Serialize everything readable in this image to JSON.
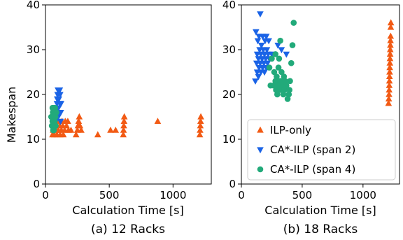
{
  "colors": {
    "ilp_only": "#f25a14",
    "span2": "#1a63e6",
    "span4": "#22aa7a"
  },
  "chart_data": [
    {
      "type": "scatter",
      "caption": "(a) 12 Racks",
      "xlabel": "Calculation Time [s]",
      "ylabel": "Makespan",
      "xlim": [
        0,
        1300
      ],
      "ylim": [
        0,
        40
      ],
      "xticks": [
        0,
        500,
        1000
      ],
      "yticks": [
        0,
        10,
        20,
        30,
        40
      ],
      "legend": null,
      "series": [
        {
          "name": "ILP-only",
          "marker": "triangle-up",
          "points": [
            [
              55,
              11
            ],
            [
              70,
              11
            ],
            [
              90,
              11
            ],
            [
              115,
              11
            ],
            [
              140,
              11
            ],
            [
              60,
              12
            ],
            [
              80,
              12
            ],
            [
              100,
              12
            ],
            [
              125,
              12
            ],
            [
              150,
              12
            ],
            [
              75,
              13
            ],
            [
              110,
              13
            ],
            [
              135,
              13
            ],
            [
              165,
              13
            ],
            [
              95,
              14
            ],
            [
              130,
              14
            ],
            [
              155,
              14
            ],
            [
              175,
              14
            ],
            [
              180,
              12
            ],
            [
              200,
              12
            ],
            [
              240,
              11
            ],
            [
              250,
              12
            ],
            [
              255,
              13
            ],
            [
              260,
              14
            ],
            [
              265,
              15
            ],
            [
              270,
              13
            ],
            [
              280,
              12
            ],
            [
              410,
              11
            ],
            [
              510,
              12
            ],
            [
              550,
              12
            ],
            [
              610,
              11
            ],
            [
              612,
              12
            ],
            [
              614,
              13
            ],
            [
              616,
              14
            ],
            [
              618,
              15
            ],
            [
              880,
              14
            ],
            [
              1210,
              11
            ],
            [
              1212,
              12
            ],
            [
              1214,
              13
            ],
            [
              1216,
              14
            ],
            [
              1218,
              15
            ]
          ]
        },
        {
          "name": "CA*-ILP (span 2)",
          "marker": "triangle-down",
          "points": [
            [
              80,
              14
            ],
            [
              82,
              15
            ],
            [
              85,
              16
            ],
            [
              88,
              17
            ],
            [
              90,
              18
            ],
            [
              92,
              19
            ],
            [
              95,
              20
            ],
            [
              98,
              21
            ],
            [
              100,
              15
            ],
            [
              102,
              17
            ],
            [
              105,
              19
            ],
            [
              108,
              21
            ],
            [
              110,
              16
            ],
            [
              112,
              18
            ],
            [
              115,
              20
            ],
            [
              118,
              14
            ],
            [
              120,
              16
            ],
            [
              122,
              18
            ],
            [
              112,
              21
            ],
            [
              95,
              16
            ]
          ]
        },
        {
          "name": "CA*-ILP (span 4)",
          "marker": "circle",
          "points": [
            [
              45,
              15
            ],
            [
              50,
              13
            ],
            [
              55,
              14
            ],
            [
              58,
              16
            ],
            [
              60,
              12
            ],
            [
              62,
              15
            ],
            [
              65,
              17
            ],
            [
              68,
              13
            ],
            [
              70,
              16
            ],
            [
              72,
              14
            ],
            [
              75,
              17
            ],
            [
              78,
              15
            ],
            [
              80,
              13
            ],
            [
              85,
              16
            ],
            [
              55,
              17
            ],
            [
              65,
              12
            ],
            [
              72,
              16
            ]
          ]
        }
      ]
    },
    {
      "type": "scatter",
      "caption": "(b) 18 Racks",
      "xlabel": "Calculation Time [s]",
      "ylabel": "",
      "xlim": [
        0,
        1300
      ],
      "ylim": [
        0,
        40
      ],
      "xticks": [
        0,
        500,
        1000
      ],
      "yticks": [
        0,
        10,
        20,
        30,
        40
      ],
      "legend": "bottom-right",
      "series": [
        {
          "name": "ILP-only",
          "marker": "triangle-up",
          "points": [
            [
              1210,
              18
            ],
            [
              1212,
              19
            ],
            [
              1214,
              20
            ],
            [
              1215,
              21
            ],
            [
              1216,
              22
            ],
            [
              1217,
              23
            ],
            [
              1218,
              24
            ],
            [
              1219,
              25
            ],
            [
              1220,
              26
            ],
            [
              1221,
              27
            ],
            [
              1222,
              28
            ],
            [
              1223,
              29
            ],
            [
              1224,
              30
            ],
            [
              1225,
              31
            ],
            [
              1226,
              32
            ],
            [
              1227,
              33
            ],
            [
              1228,
              35
            ],
            [
              1229,
              36
            ]
          ]
        },
        {
          "name": "CA*-ILP (span 2)",
          "marker": "triangle-down",
          "points": [
            [
              155,
              38
            ],
            [
              120,
              34
            ],
            [
              145,
              33
            ],
            [
              175,
              33
            ],
            [
              205,
              33
            ],
            [
              135,
              32
            ],
            [
              165,
              31
            ],
            [
              195,
              32
            ],
            [
              225,
              32
            ],
            [
              150,
              30
            ],
            [
              180,
              30
            ],
            [
              210,
              30
            ],
            [
              130,
              29
            ],
            [
              160,
              29
            ],
            [
              190,
              29
            ],
            [
              220,
              29
            ],
            [
              250,
              29
            ],
            [
              140,
              28
            ],
            [
              170,
              28
            ],
            [
              200,
              28
            ],
            [
              230,
              28
            ],
            [
              125,
              27
            ],
            [
              155,
              27
            ],
            [
              185,
              27
            ],
            [
              215,
              27
            ],
            [
              145,
              26
            ],
            [
              175,
              26
            ],
            [
              205,
              26
            ],
            [
              130,
              25
            ],
            [
              160,
              25
            ],
            [
              190,
              25
            ],
            [
              115,
              23
            ],
            [
              140,
              24
            ],
            [
              300,
              31
            ],
            [
              330,
              30
            ],
            [
              370,
              29
            ]
          ]
        },
        {
          "name": "CA*-ILP (span 4)",
          "marker": "circle",
          "points": [
            [
              250,
              28
            ],
            [
              265,
              22
            ],
            [
              270,
              25
            ],
            [
              280,
              23
            ],
            [
              285,
              21
            ],
            [
              290,
              24
            ],
            [
              295,
              20
            ],
            [
              300,
              22
            ],
            [
              305,
              26
            ],
            [
              310,
              28
            ],
            [
              315,
              21
            ],
            [
              320,
              23
            ],
            [
              330,
              25
            ],
            [
              340,
              22
            ],
            [
              345,
              20
            ],
            [
              350,
              24
            ],
            [
              355,
              21
            ],
            [
              360,
              23
            ],
            [
              370,
              22
            ],
            [
              380,
              19
            ],
            [
              390,
              20
            ],
            [
              395,
              21
            ],
            [
              400,
              23
            ],
            [
              410,
              27
            ],
            [
              420,
              31
            ],
            [
              240,
              22
            ],
            [
              230,
              26
            ],
            [
              280,
              29
            ],
            [
              320,
              32
            ],
            [
              430,
              36
            ]
          ]
        }
      ]
    }
  ]
}
